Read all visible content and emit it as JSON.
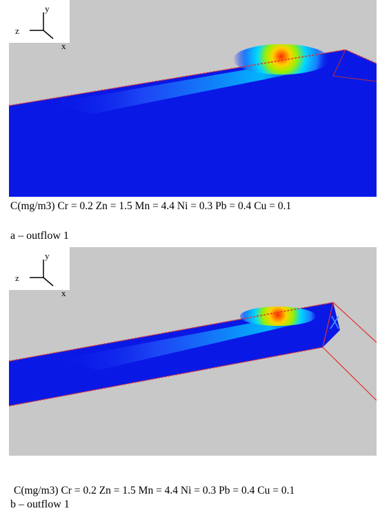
{
  "figure": {
    "panel_a": {
      "axes": {
        "y": "y",
        "z": "z",
        "x": "x"
      },
      "formula": "C(mg/m3) Cr = 0.2 Zn = 1.5 Mn = 4.4 Ni = 0.3 Pb = 0.4 Cu = 0.1",
      "label": "a – outflow 1"
    },
    "panel_b": {
      "axes": {
        "y": "y",
        "z": "z",
        "x": "x"
      },
      "formula": "C(mg/m3) Cr = 0.2 Zn = 1.5 Mn = 4.4 Ni = 0.3 Pb = 0.4 Cu = 0.1",
      "label": "b – outflow 1"
    }
  },
  "colors": {
    "background_gray": "#c8c8c8",
    "domain_blue": "#0a18e6",
    "outline_red": "#e03030"
  }
}
